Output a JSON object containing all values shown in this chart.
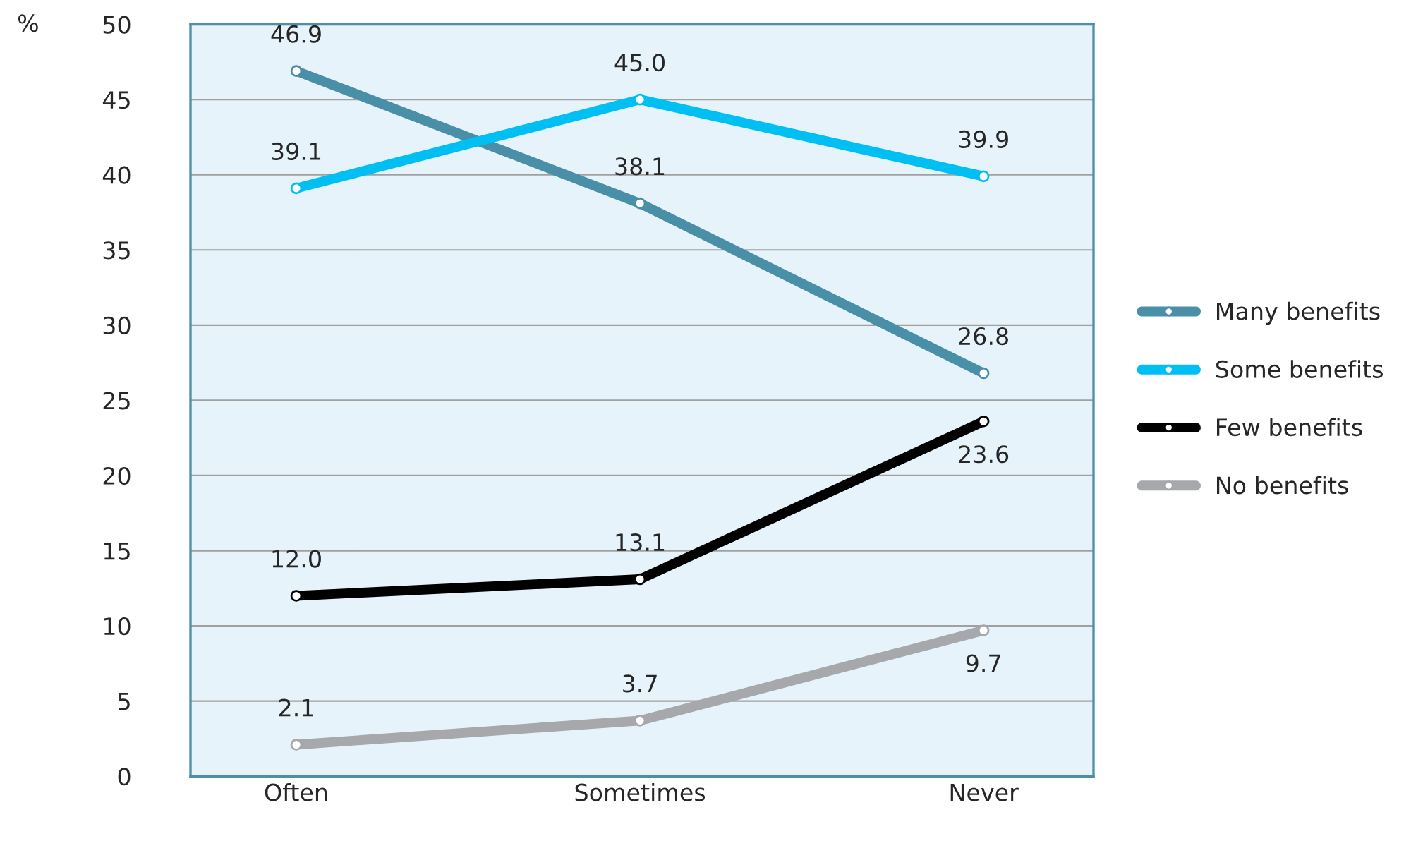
{
  "chart_data": {
    "type": "line",
    "ylabel": "%",
    "categories": [
      "Often",
      "Sometimes",
      "Never"
    ],
    "series": [
      {
        "name": "Many benefits",
        "color": "#4a8fa8",
        "values": [
          46.9,
          38.1,
          26.8
        ],
        "value_labels": [
          "46.9",
          "38.1",
          "26.8"
        ]
      },
      {
        "name": "Some benefits",
        "color": "#00bff3",
        "values": [
          39.1,
          45.0,
          39.9
        ],
        "value_labels": [
          "39.1",
          "45.0",
          "39.9"
        ]
      },
      {
        "name": "Few benefits",
        "color": "#000000",
        "values": [
          12.0,
          13.1,
          23.6
        ],
        "value_labels": [
          "12.0",
          "13.1",
          "23.6"
        ]
      },
      {
        "name": "No benefits",
        "color": "#a6a8ab",
        "values": [
          2.1,
          3.7,
          9.7
        ],
        "value_labels": [
          "2.1",
          "3.7",
          "9.7"
        ]
      }
    ],
    "ylim": [
      0,
      50
    ],
    "yticks": [
      0,
      5,
      10,
      15,
      20,
      25,
      30,
      35,
      40,
      45,
      50
    ],
    "grid": "y",
    "legend": "right",
    "marker": "circle",
    "line_style": "solid"
  }
}
